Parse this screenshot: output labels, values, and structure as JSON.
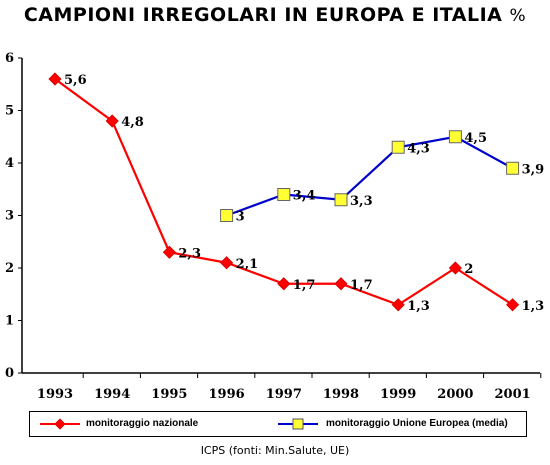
{
  "title": "CAMPIONI IRREGOLARI IN EUROPA E ITALIA",
  "title_unit": "%",
  "source": "ICPS (fonti: Min.Salute, UE)",
  "chart_data": {
    "type": "line",
    "title": "CAMPIONI IRREGOLARI IN EUROPA E ITALIA %",
    "categories": [
      "1993",
      "1994",
      "1995",
      "1996",
      "1997",
      "1998",
      "1999",
      "2000",
      "2001"
    ],
    "ylim": [
      0,
      6
    ],
    "yticks": [
      "0",
      "1",
      "2",
      "3",
      "4",
      "5",
      "6"
    ],
    "grid": false,
    "legend_position": "bottom",
    "series": [
      {
        "name": "monitoraggio nazionale",
        "color": "#ff0000",
        "marker": "diamond",
        "values": [
          5.6,
          4.8,
          2.3,
          2.1,
          1.7,
          1.7,
          1.3,
          2.0,
          1.3
        ],
        "labels": [
          "5,6",
          "4,8",
          "2,3",
          "2,1",
          "1,7",
          "1,7",
          "1,3",
          "2",
          "1,3"
        ]
      },
      {
        "name": "monitoraggio Unione Europea (media)",
        "color": "#0000cc",
        "marker": "square",
        "marker_fill": "#ffff33",
        "values": [
          null,
          null,
          null,
          3.0,
          3.4,
          3.3,
          4.3,
          4.5,
          3.9
        ],
        "labels": [
          null,
          null,
          null,
          "3",
          "3,4",
          "3,3",
          "4,3",
          "4,5",
          "3,9"
        ]
      }
    ]
  }
}
